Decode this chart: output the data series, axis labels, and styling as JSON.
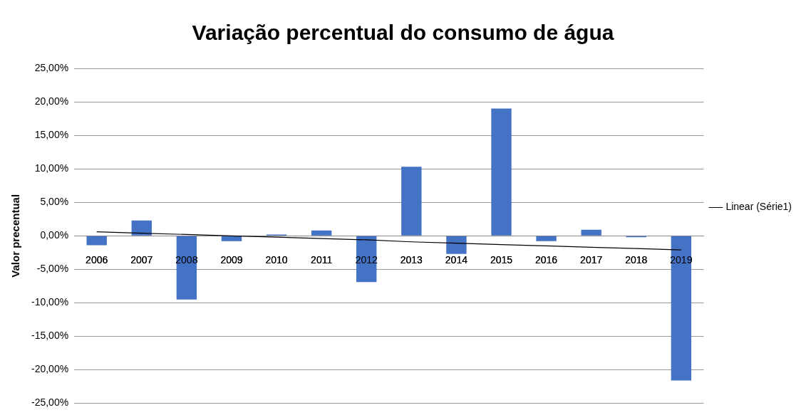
{
  "chart_data": {
    "type": "bar",
    "title": "Variação percentual do consumo de água",
    "ylabel": "Valor precentual",
    "categories": [
      "2006",
      "2007",
      "2008",
      "2009",
      "2010",
      "2011",
      "2012",
      "2013",
      "2014",
      "2015",
      "2016",
      "2017",
      "2018",
      "2019"
    ],
    "series": [
      {
        "color": "#4472c4",
        "values": [
          -1.4,
          2.3,
          -9.5,
          -0.8,
          0.2,
          0.8,
          -6.9,
          10.3,
          -2.7,
          19.0,
          -0.8,
          0.9,
          -0.2,
          -21.6
        ]
      },
      {
        "type": "line",
        "name": "Linear (Série1)",
        "color": "#000000",
        "values": [
          0.6,
          0.4,
          0.2,
          0.0,
          -0.2,
          -0.4,
          -0.6,
          -0.9,
          -1.1,
          -1.3,
          -1.5,
          -1.7,
          -1.9,
          -2.1
        ]
      }
    ],
    "ylim": [
      -25,
      25
    ],
    "yticks": [
      {
        "value": -25,
        "label": "-25,00%"
      },
      {
        "value": -20,
        "label": "-20,00%"
      },
      {
        "value": -15,
        "label": "-15,00%"
      },
      {
        "value": -10,
        "label": "-10,00%"
      },
      {
        "value": -5,
        "label": "-5,00%"
      },
      {
        "value": 0,
        "label": "0,00%"
      },
      {
        "value": 5,
        "label": "5,00%"
      },
      {
        "value": 10,
        "label": "10,00%"
      },
      {
        "value": 15,
        "label": "15,00%"
      },
      {
        "value": 20,
        "label": "20,00%"
      },
      {
        "value": 25,
        "label": "25,00%"
      }
    ],
    "grid": "y",
    "legend": "right",
    "marker": "none"
  }
}
